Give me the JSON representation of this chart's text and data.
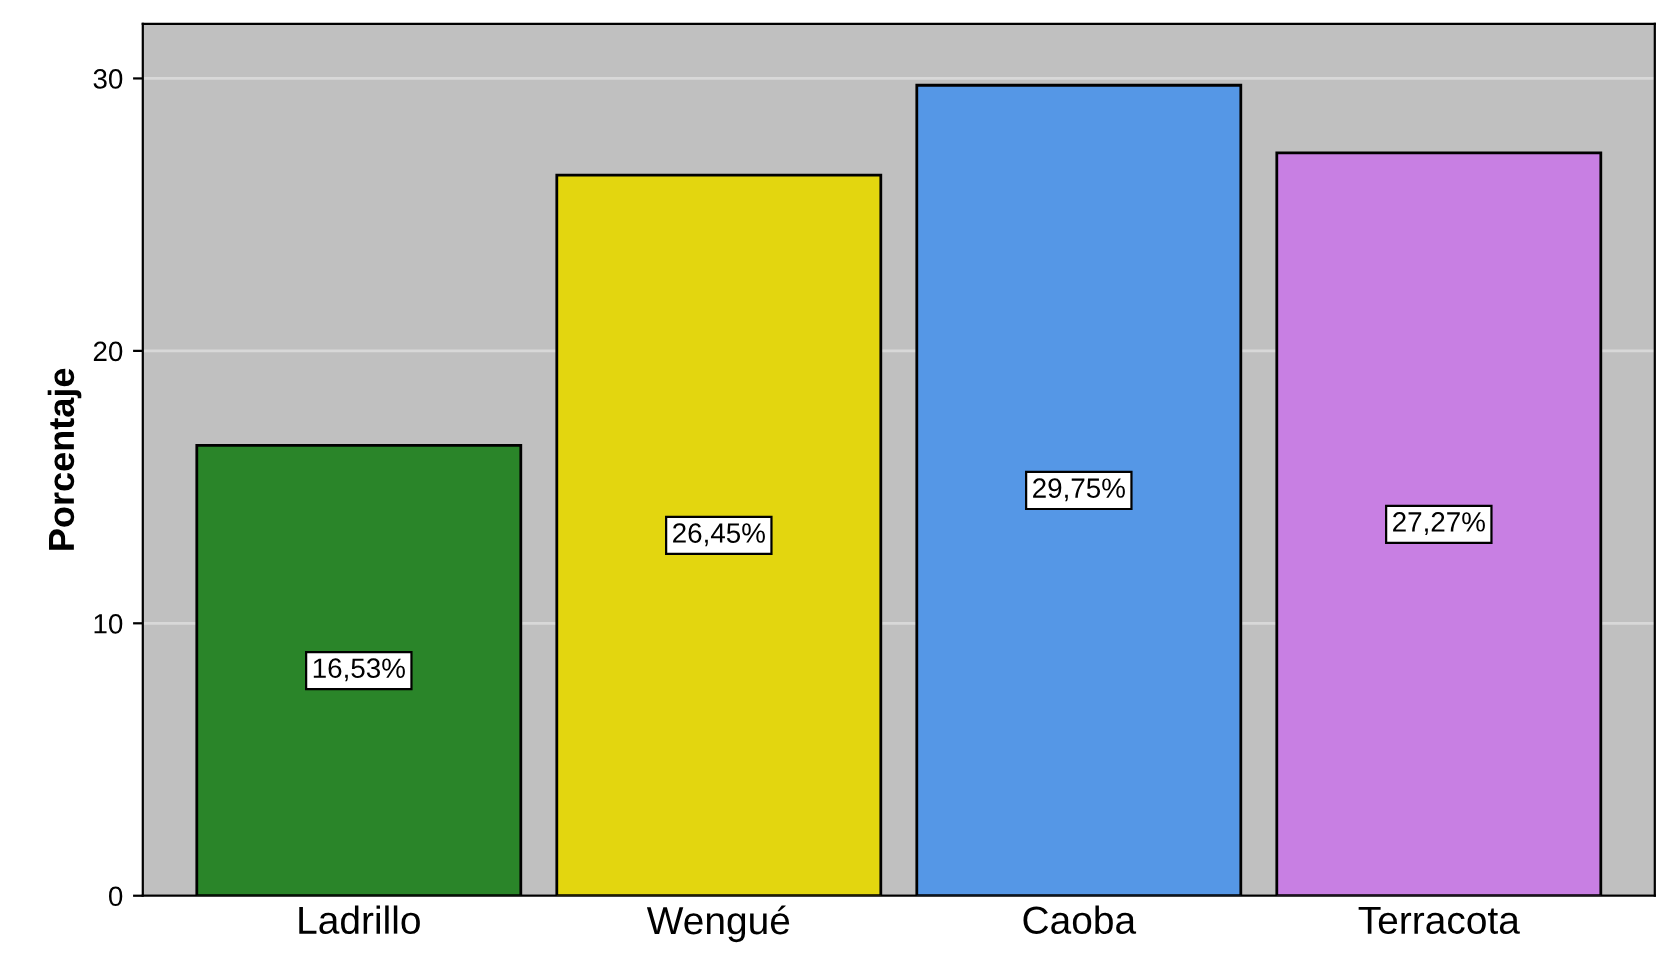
{
  "chart_data": {
    "type": "bar",
    "ylabel": "Porcentaje",
    "categories": [
      "Ladrillo",
      "Wengué",
      "Caoba",
      "Terracota"
    ],
    "values": [
      16.53,
      26.45,
      29.75,
      27.27
    ],
    "colors": [
      "#2a8529",
      "#e3d60f",
      "#5597e6",
      "#c87fe3"
    ],
    "value_labels": [
      "16,53%",
      "26,45%",
      "29,75%",
      "27,27%"
    ],
    "ylim": [
      0,
      32
    ],
    "yticks": [
      0,
      10,
      20,
      30
    ],
    "grid": "y"
  }
}
